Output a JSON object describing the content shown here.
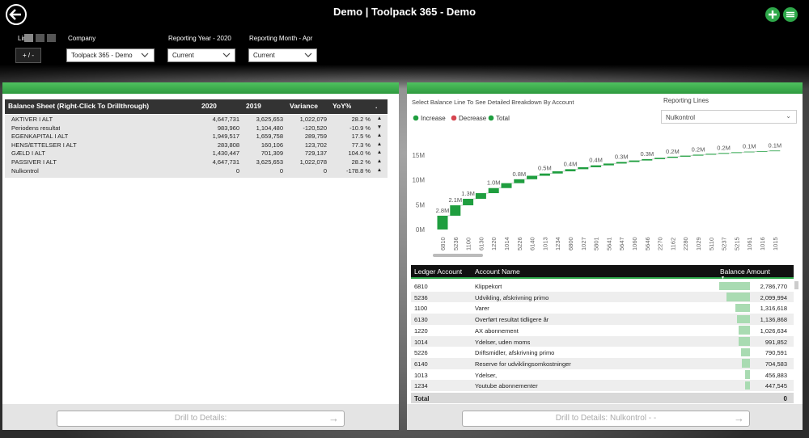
{
  "header": {
    "title": "Demo | Toolpack 365 - Demo"
  },
  "filters": {
    "lines_label": "Lines",
    "toggle": "+ / -",
    "company": {
      "label": "Company",
      "value": "Toolpack 365 - Demo"
    },
    "year": {
      "label": "Reporting Year - 2020",
      "value": "Current"
    },
    "month": {
      "label": "Reporting Month - Apr",
      "value": "Current"
    }
  },
  "balance_table": {
    "columns": [
      "Balance Sheet (Right-Click To Drillthrough)",
      "2020",
      "2019",
      "Variance",
      "YoY%",
      "."
    ],
    "rows": [
      [
        "AKTIVER I ALT",
        "4,647,731",
        "3,625,653",
        "1,022,079",
        "28.2 %",
        "▲"
      ],
      [
        "Periodens resultat",
        "983,960",
        "1,104,480",
        "-120,520",
        "-10.9 %",
        "▼"
      ],
      [
        "EGENKAPITAL I ALT",
        "1,949,517",
        "1,659,758",
        "289,759",
        "17.5 %",
        "▲"
      ],
      [
        "HENS/ETTELSER I ALT",
        "283,808",
        "160,106",
        "123,702",
        "77.3 %",
        "▲"
      ],
      [
        "GÆLD I ALT",
        "1,430,447",
        "701,309",
        "729,137",
        "104.0 %",
        "▲"
      ],
      [
        "PASSIVER I ALT",
        "4,647,731",
        "3,625,653",
        "1,022,078",
        "28.2 %",
        "▲"
      ],
      [
        "Nulkontrol",
        "0",
        "0",
        "0",
        "-178.8 %",
        "▲"
      ]
    ],
    "button": "Drill to Details:"
  },
  "breakdown": {
    "instruction": "Select Balance Line To See Detailed Breakdown By Account",
    "reporting_lines": {
      "label": "Reporting Lines",
      "value": "Nulkontrol"
    },
    "legend": [
      {
        "name": "Increase",
        "color": "#1f9e3f"
      },
      {
        "name": "Decrease",
        "color": "#d64550"
      },
      {
        "name": "Total",
        "color": "#1f9e3f"
      }
    ],
    "chart_data": {
      "type": "waterfall",
      "categories": [
        "6810",
        "5236",
        "1100",
        "6130",
        "1220",
        "1014",
        "5226",
        "6140",
        "1013",
        "1234",
        "6800",
        "1027",
        "5801",
        "5641",
        "5647",
        "1060",
        "5646",
        "2270",
        "1162",
        "2280",
        "1029",
        "5110",
        "5237",
        "5215",
        "1061",
        "1016",
        "1015"
      ],
      "values": [
        2786770,
        2099994,
        1316618,
        1136868,
        1026634,
        991852,
        790591,
        704583,
        456883,
        447545,
        420000,
        400000,
        380000,
        360000,
        320000,
        300000,
        280000,
        260000,
        230000,
        210000,
        190000,
        180000,
        160000,
        150000,
        130000,
        110000,
        100000
      ],
      "value_labels": [
        "2.8M",
        "2.1M",
        "1.3M",
        null,
        "1.0M",
        null,
        "0.8M",
        null,
        "0.5M",
        null,
        "0.4M",
        null,
        "0.4M",
        null,
        "0.3M",
        null,
        "0.3M",
        null,
        "0.2M",
        null,
        "0.2M",
        null,
        "0.2M",
        null,
        "0.1M",
        null,
        "0.1M"
      ],
      "color": "#1f9e3f",
      "ylim": [
        0,
        17300000
      ],
      "yticks": [
        {
          "value": 0,
          "label": "0M"
        },
        {
          "value": 5000000,
          "label": "5M"
        },
        {
          "value": 10000000,
          "label": "10M"
        },
        {
          "value": 15000000,
          "label": "15M"
        }
      ]
    },
    "table": {
      "columns": [
        "Ledger Account",
        "Account Name",
        "Balance Amount"
      ],
      "rows": [
        {
          "ledger": "6810",
          "name": "Klippekort",
          "amount": 2786770,
          "amount_label": "2,786,770"
        },
        {
          "ledger": "5236",
          "name": "Udvikling, afskrivning primo",
          "amount": 2099994,
          "amount_label": "2,099,994"
        },
        {
          "ledger": "1100",
          "name": "Varer",
          "amount": 1316618,
          "amount_label": "1,316,618"
        },
        {
          "ledger": "6130",
          "name": "Overført resultat tidligere år",
          "amount": 1136868,
          "amount_label": "1,136,868"
        },
        {
          "ledger": "1220",
          "name": "AX abonnement",
          "amount": 1026634,
          "amount_label": "1,026,634"
        },
        {
          "ledger": "1014",
          "name": "Ydelser, uden moms",
          "amount": 991852,
          "amount_label": "991,852"
        },
        {
          "ledger": "5226",
          "name": "Driftsmidler, afskrivning primo",
          "amount": 790591,
          "amount_label": "790,591"
        },
        {
          "ledger": "6140",
          "name": "Reserve for udviklingsomkostninger",
          "amount": 704583,
          "amount_label": "704,583"
        },
        {
          "ledger": "1013",
          "name": "Ydelser,",
          "amount": 456883,
          "amount_label": "456,883"
        },
        {
          "ledger": "1234",
          "name": "Youtube abonnementer",
          "amount": 447545,
          "amount_label": "447,545"
        }
      ],
      "total_label": "Total",
      "total": 0
    },
    "button": "Drill to Details: Nulkontrol - -"
  }
}
